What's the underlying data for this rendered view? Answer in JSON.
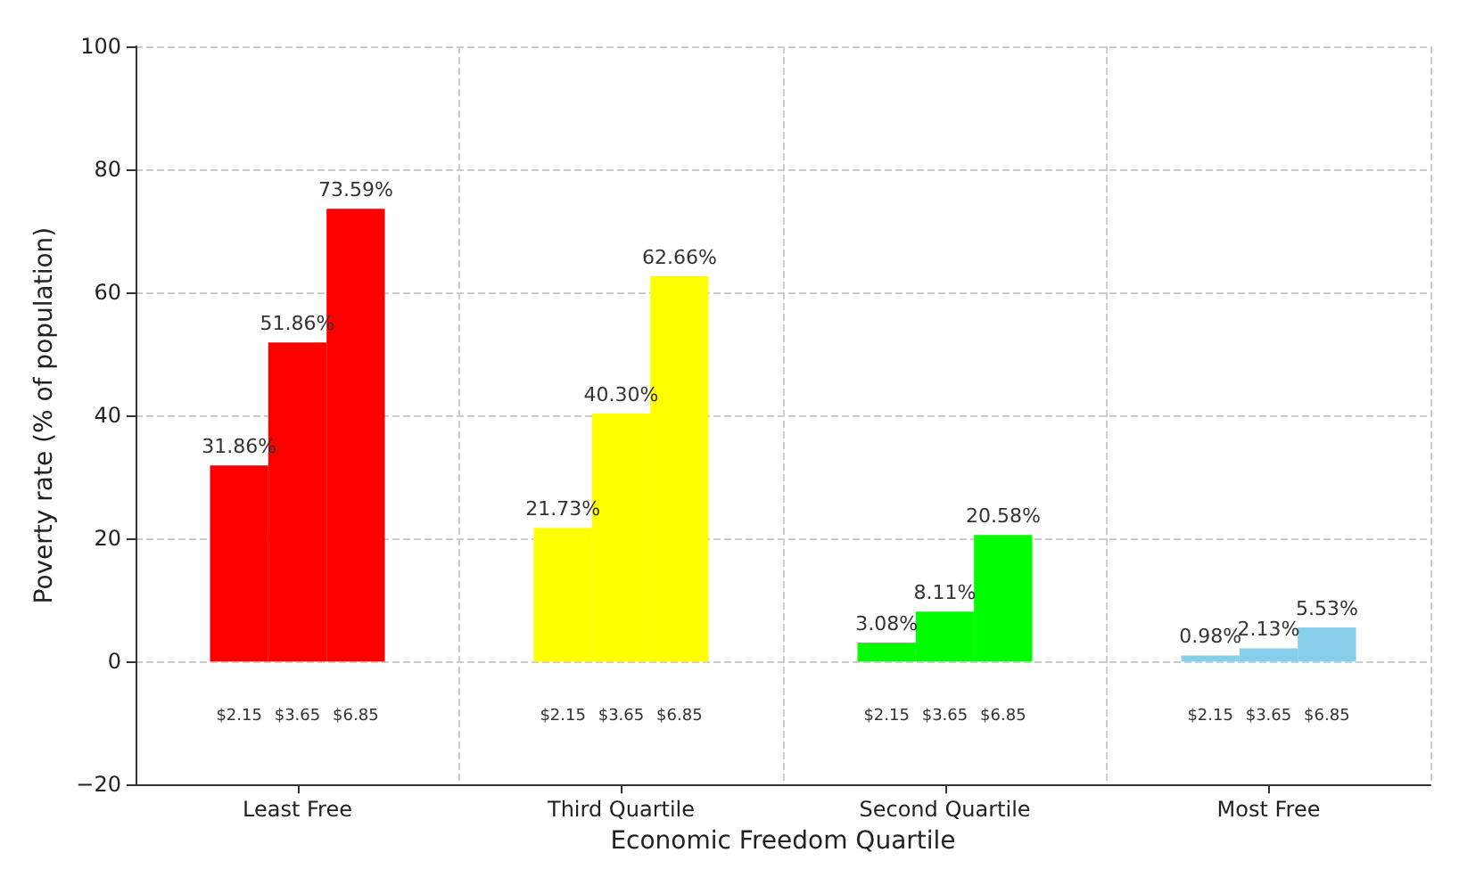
{
  "chart_data": {
    "type": "bar",
    "xlabel": "Economic Freedom Quartile",
    "ylabel": "Poverty rate (% of population)",
    "categories": [
      "Least Free",
      "Third Quartile",
      "Second Quartile",
      "Most Free"
    ],
    "series": [
      {
        "name": "$2.15",
        "colors": [
          "#ff0000",
          "#ffff00",
          "#00ff00",
          "#87ceeb"
        ],
        "values": [
          31.86,
          21.73,
          3.08,
          0.98
        ],
        "value_labels": [
          "31.86%",
          "21.73%",
          "3.08%",
          "0.98%"
        ]
      },
      {
        "name": "$3.65",
        "colors": [
          "#ff0000",
          "#ffff00",
          "#00ff00",
          "#87ceeb"
        ],
        "values": [
          51.86,
          40.3,
          8.11,
          2.13
        ],
        "value_labels": [
          "51.86%",
          "40.30%",
          "8.11%",
          "2.13%"
        ]
      },
      {
        "name": "$6.85",
        "colors": [
          "#ff0000",
          "#ffff00",
          "#00ff00",
          "#87ceeb"
        ],
        "values": [
          73.59,
          62.66,
          20.58,
          5.53
        ],
        "value_labels": [
          "73.59%",
          "62.66%",
          "20.58%",
          "5.53%"
        ]
      }
    ],
    "ylim": [
      -20,
      100
    ],
    "yticks": [
      -20,
      0,
      20,
      40,
      60,
      80,
      100
    ],
    "grid": true,
    "legend": false
  }
}
